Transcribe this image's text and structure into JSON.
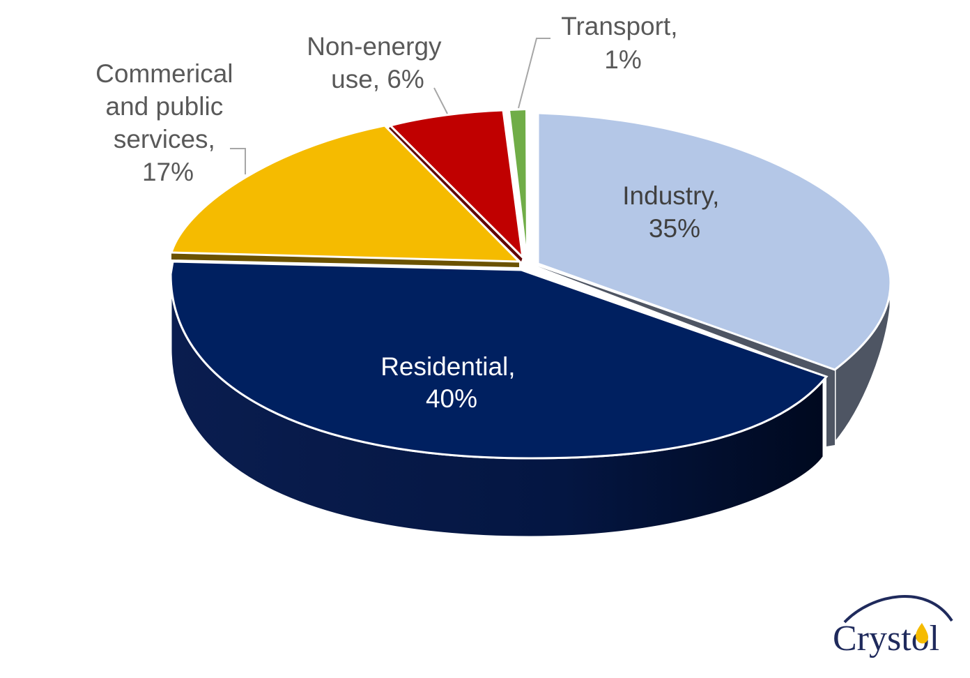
{
  "chart_data": {
    "type": "pie",
    "style": "3d-exploded",
    "title": "",
    "slices": [
      {
        "category": "Industry",
        "value": 35,
        "label": "Industry,",
        "value_label": "35%",
        "color": "#b4c7e7",
        "side_color": "#4e5563"
      },
      {
        "category": "Residential",
        "value": 40,
        "label": "Residential,",
        "value_label": "40%",
        "color": "#002060",
        "side_color": "#001238"
      },
      {
        "category": "Commerical and public services",
        "value": 17,
        "label_lines": [
          "Commerical",
          "and public",
          "services,",
          "17%"
        ],
        "color": "#f5bb00",
        "side_color": "#6b5200"
      },
      {
        "category": "Non-energy use",
        "value": 6,
        "label_lines": [
          "Non-energy",
          "use, 6%"
        ],
        "color": "#c00000",
        "side_color": "#600000"
      },
      {
        "category": "Transport",
        "value": 1,
        "label_lines": [
          "Transport,",
          "1%"
        ],
        "color": "#70ad47",
        "side_color": "#3a5d25"
      }
    ]
  },
  "logo": {
    "text": "Crystol"
  }
}
